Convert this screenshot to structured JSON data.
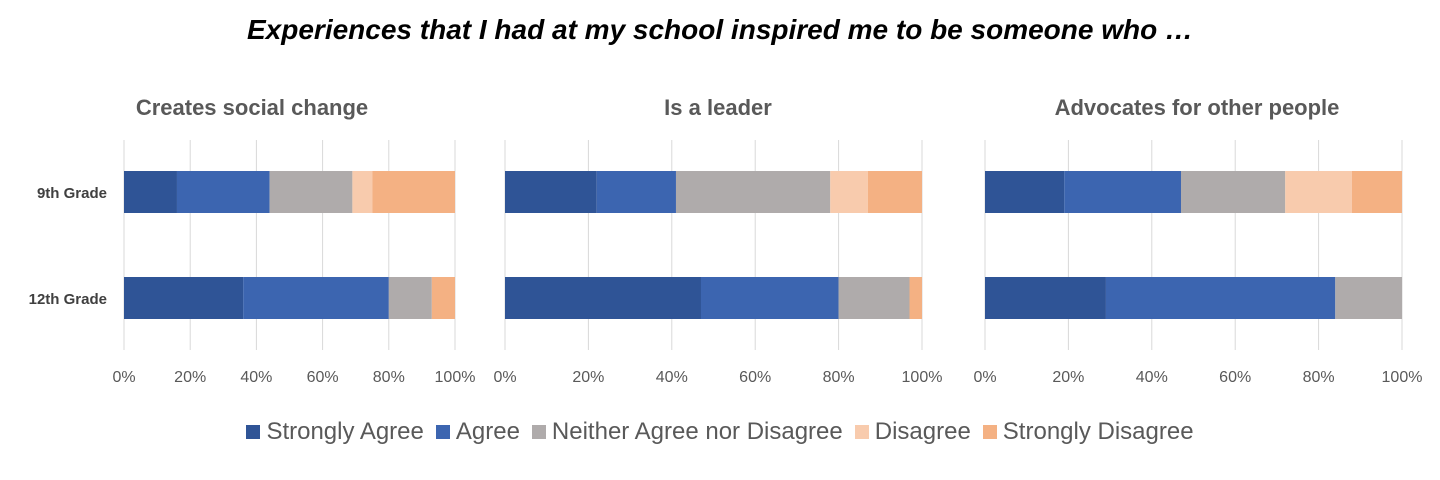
{
  "title": "Experiences that I had at my school inspired me to be someone who …",
  "series_colors": {
    "Strongly Agree": "#2f5496",
    "Agree": "#3c65b0",
    "Neither Agree nor Disagree": "#afabab",
    "Disagree": "#f8cbad",
    "Strongly Disagree": "#f4b183"
  },
  "legend": [
    "Strongly Agree",
    "Agree",
    "Neither Agree nor Disagree",
    "Disagree",
    "Strongly Disagree"
  ],
  "chart_data": [
    {
      "type": "bar",
      "orientation": "horizontal",
      "stacked": true,
      "title": "Creates social change",
      "categories": [
        "9th Grade",
        "12th Grade"
      ],
      "xlim": [
        0,
        100
      ],
      "xticks": [
        "0%",
        "20%",
        "40%",
        "60%",
        "80%",
        "100%"
      ],
      "grid": true,
      "legend_position": "bottom",
      "series": [
        {
          "name": "Strongly Agree",
          "values": [
            16,
            36
          ]
        },
        {
          "name": "Agree",
          "values": [
            28,
            44
          ]
        },
        {
          "name": "Neither Agree nor Disagree",
          "values": [
            25,
            13
          ]
        },
        {
          "name": "Disagree",
          "values": [
            6,
            0
          ]
        },
        {
          "name": "Strongly Disagree",
          "values": [
            25,
            7
          ]
        }
      ]
    },
    {
      "type": "bar",
      "orientation": "horizontal",
      "stacked": true,
      "title": "Is a leader",
      "categories": [
        "9th Grade",
        "12th Grade"
      ],
      "xlim": [
        0,
        100
      ],
      "xticks": [
        "0%",
        "20%",
        "40%",
        "60%",
        "80%",
        "100%"
      ],
      "grid": true,
      "legend_position": "bottom",
      "series": [
        {
          "name": "Strongly Agree",
          "values": [
            22,
            47
          ]
        },
        {
          "name": "Agree",
          "values": [
            19,
            33
          ]
        },
        {
          "name": "Neither Agree nor Disagree",
          "values": [
            37,
            17
          ]
        },
        {
          "name": "Disagree",
          "values": [
            9,
            0
          ]
        },
        {
          "name": "Strongly Disagree",
          "values": [
            13,
            3
          ]
        }
      ]
    },
    {
      "type": "bar",
      "orientation": "horizontal",
      "stacked": true,
      "title": "Advocates for other people",
      "categories": [
        "9th Grade",
        "12th Grade"
      ],
      "xlim": [
        0,
        100
      ],
      "xticks": [
        "0%",
        "20%",
        "40%",
        "60%",
        "80%",
        "100%"
      ],
      "grid": true,
      "legend_position": "bottom",
      "series": [
        {
          "name": "Strongly Agree",
          "values": [
            19,
            29
          ]
        },
        {
          "name": "Agree",
          "values": [
            28,
            55
          ]
        },
        {
          "name": "Neither Agree nor Disagree",
          "values": [
            25,
            16
          ]
        },
        {
          "name": "Disagree",
          "values": [
            16,
            0
          ]
        },
        {
          "name": "Strongly Disagree",
          "values": [
            12,
            0
          ]
        }
      ]
    }
  ]
}
